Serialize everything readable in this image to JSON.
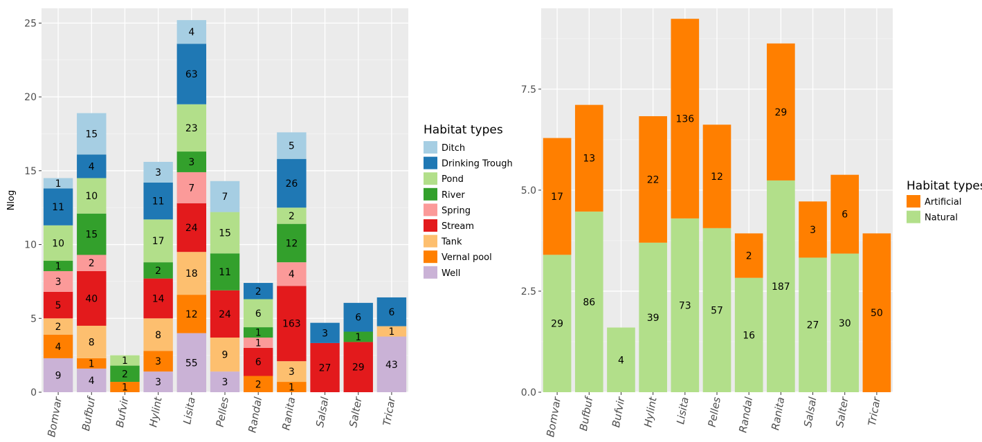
{
  "colors": {
    "panel_bg": "#EBEBEB",
    "grid_major": "#FFFFFF",
    "grid_minor": "#F4F4F4",
    "axis_text": "#4D4D4D"
  },
  "chart_data": [
    {
      "type": "bar",
      "stacked": true,
      "ylabel": "Nlog",
      "xlabel": "",
      "ylim": [
        0,
        26
      ],
      "yticks": [
        0,
        5,
        10,
        15,
        20,
        25
      ],
      "ytick_labels": [
        "0",
        "5",
        "10",
        "15",
        "20",
        "25"
      ],
      "grid": true,
      "categories": [
        "Bomvar",
        "Bufbuf",
        "Bufvir",
        "Hylint",
        "Lisita",
        "Pelles",
        "Randal",
        "Ranita",
        "Salsal",
        "Salter",
        "Tricar"
      ],
      "legend": {
        "title": "Habitat types",
        "position": "right",
        "entries": [
          "Ditch",
          "Drinking Trough",
          "Pond",
          "River",
          "Spring",
          "Stream",
          "Tank",
          "Vernal pool",
          "Well"
        ]
      },
      "series": [
        {
          "name": "Well",
          "color": "#CAB2D6",
          "heights": [
            2.3,
            1.6,
            0,
            1.4,
            4.0,
            1.4,
            0,
            0,
            0,
            0,
            3.77
          ],
          "labels": [
            "9",
            "4",
            "",
            "3",
            "55",
            "3",
            "",
            "",
            "",
            "",
            "43"
          ]
        },
        {
          "name": "Vernal pool",
          "color": "#FF7F00",
          "heights": [
            1.6,
            0.7,
            0.7,
            1.4,
            2.6,
            0,
            1.1,
            0.7,
            0,
            0,
            0
          ],
          "labels": [
            "4",
            "1",
            "1",
            "3",
            "12",
            "",
            "2",
            "1",
            "",
            "",
            ""
          ]
        },
        {
          "name": "Tank",
          "color": "#FDBF6F",
          "heights": [
            1.1,
            2.2,
            0,
            2.2,
            2.9,
            2.3,
            0,
            1.4,
            0,
            0,
            0.7
          ],
          "labels": [
            "2",
            "8",
            "",
            "8",
            "18",
            "9",
            "",
            "3",
            "",
            "",
            "1"
          ]
        },
        {
          "name": "Stream",
          "color": "#E31A1C",
          "heights": [
            1.8,
            3.7,
            0,
            2.7,
            3.3,
            3.2,
            1.9,
            5.1,
            3.33,
            3.4,
            0
          ],
          "labels": [
            "5",
            "40",
            "",
            "14",
            "24",
            "24",
            "6",
            "163",
            "27",
            "29",
            ""
          ]
        },
        {
          "name": "Spring",
          "color": "#FB9A99",
          "heights": [
            1.4,
            1.1,
            0,
            0,
            2.1,
            0,
            0.7,
            1.6,
            0,
            0,
            0
          ],
          "labels": [
            "3",
            "2",
            "",
            "",
            "7",
            "",
            "1",
            "4",
            "",
            "",
            ""
          ]
        },
        {
          "name": "River",
          "color": "#33A02C",
          "heights": [
            0.7,
            2.8,
            1.1,
            1.1,
            1.4,
            2.5,
            0.7,
            2.6,
            0,
            0.7,
            0
          ],
          "labels": [
            "1",
            "15",
            "2",
            "2",
            "3",
            "11",
            "1",
            "12",
            "",
            "1",
            ""
          ]
        },
        {
          "name": "Pond",
          "color": "#B2DF8A",
          "heights": [
            2.4,
            2.4,
            0.7,
            2.9,
            3.2,
            2.8,
            1.9,
            1.1,
            0,
            0,
            0
          ],
          "labels": [
            "10",
            "10",
            "1",
            "17",
            "23",
            "15",
            "6",
            "2",
            "",
            "",
            ""
          ]
        },
        {
          "name": "Drinking Trough",
          "color": "#1F78B4",
          "heights": [
            2.5,
            1.6,
            0,
            2.5,
            4.1,
            0,
            1.1,
            3.3,
            1.37,
            1.95,
            1.95
          ],
          "labels": [
            "11",
            "4",
            "",
            "11",
            "63",
            "",
            "2",
            "26",
            "3",
            "6",
            "6"
          ]
        },
        {
          "name": "Ditch",
          "color": "#A6CEE3",
          "heights": [
            0.7,
            2.8,
            0,
            1.4,
            1.6,
            2.1,
            0,
            1.8,
            0,
            0,
            0
          ],
          "labels": [
            "1",
            "15",
            "",
            "3",
            "4",
            "7",
            "",
            "5",
            "",
            "",
            ""
          ]
        }
      ]
    },
    {
      "type": "bar",
      "stacked": true,
      "ylabel": "",
      "xlabel": "",
      "ylim": [
        0,
        9.5
      ],
      "yticks": [
        0,
        2.5,
        5,
        7.5
      ],
      "ytick_labels": [
        "0.0",
        "2.5",
        "5.0",
        "7.5"
      ],
      "grid": true,
      "categories": [
        "Bomvar",
        "Bufbuf",
        "Bufvir",
        "Hylint",
        "Lisita",
        "Pelles",
        "Randal",
        "Ranita",
        "Salsal",
        "Salter",
        "Tricar"
      ],
      "legend": {
        "title": "Habitat types",
        "position": "right",
        "entries": [
          "Artificial",
          "Natural"
        ]
      },
      "series": [
        {
          "name": "Natural",
          "color": "#B2DF8A",
          "heights": [
            3.4,
            4.47,
            1.6,
            3.7,
            4.3,
            4.06,
            2.83,
            5.24,
            3.33,
            3.43,
            0
          ],
          "labels": [
            "29",
            "86",
            "4",
            "39",
            "73",
            "57",
            "16",
            "187",
            "27",
            "30",
            ""
          ]
        },
        {
          "name": "Artificial",
          "color": "#FF7F00",
          "heights": [
            2.89,
            2.64,
            0,
            3.13,
            4.94,
            2.56,
            1.1,
            3.39,
            1.39,
            1.95,
            3.93
          ],
          "labels": [
            "17",
            "13",
            "",
            "22",
            "136",
            "12",
            "2",
            "29",
            "3",
            "6",
            "50"
          ]
        }
      ]
    }
  ]
}
